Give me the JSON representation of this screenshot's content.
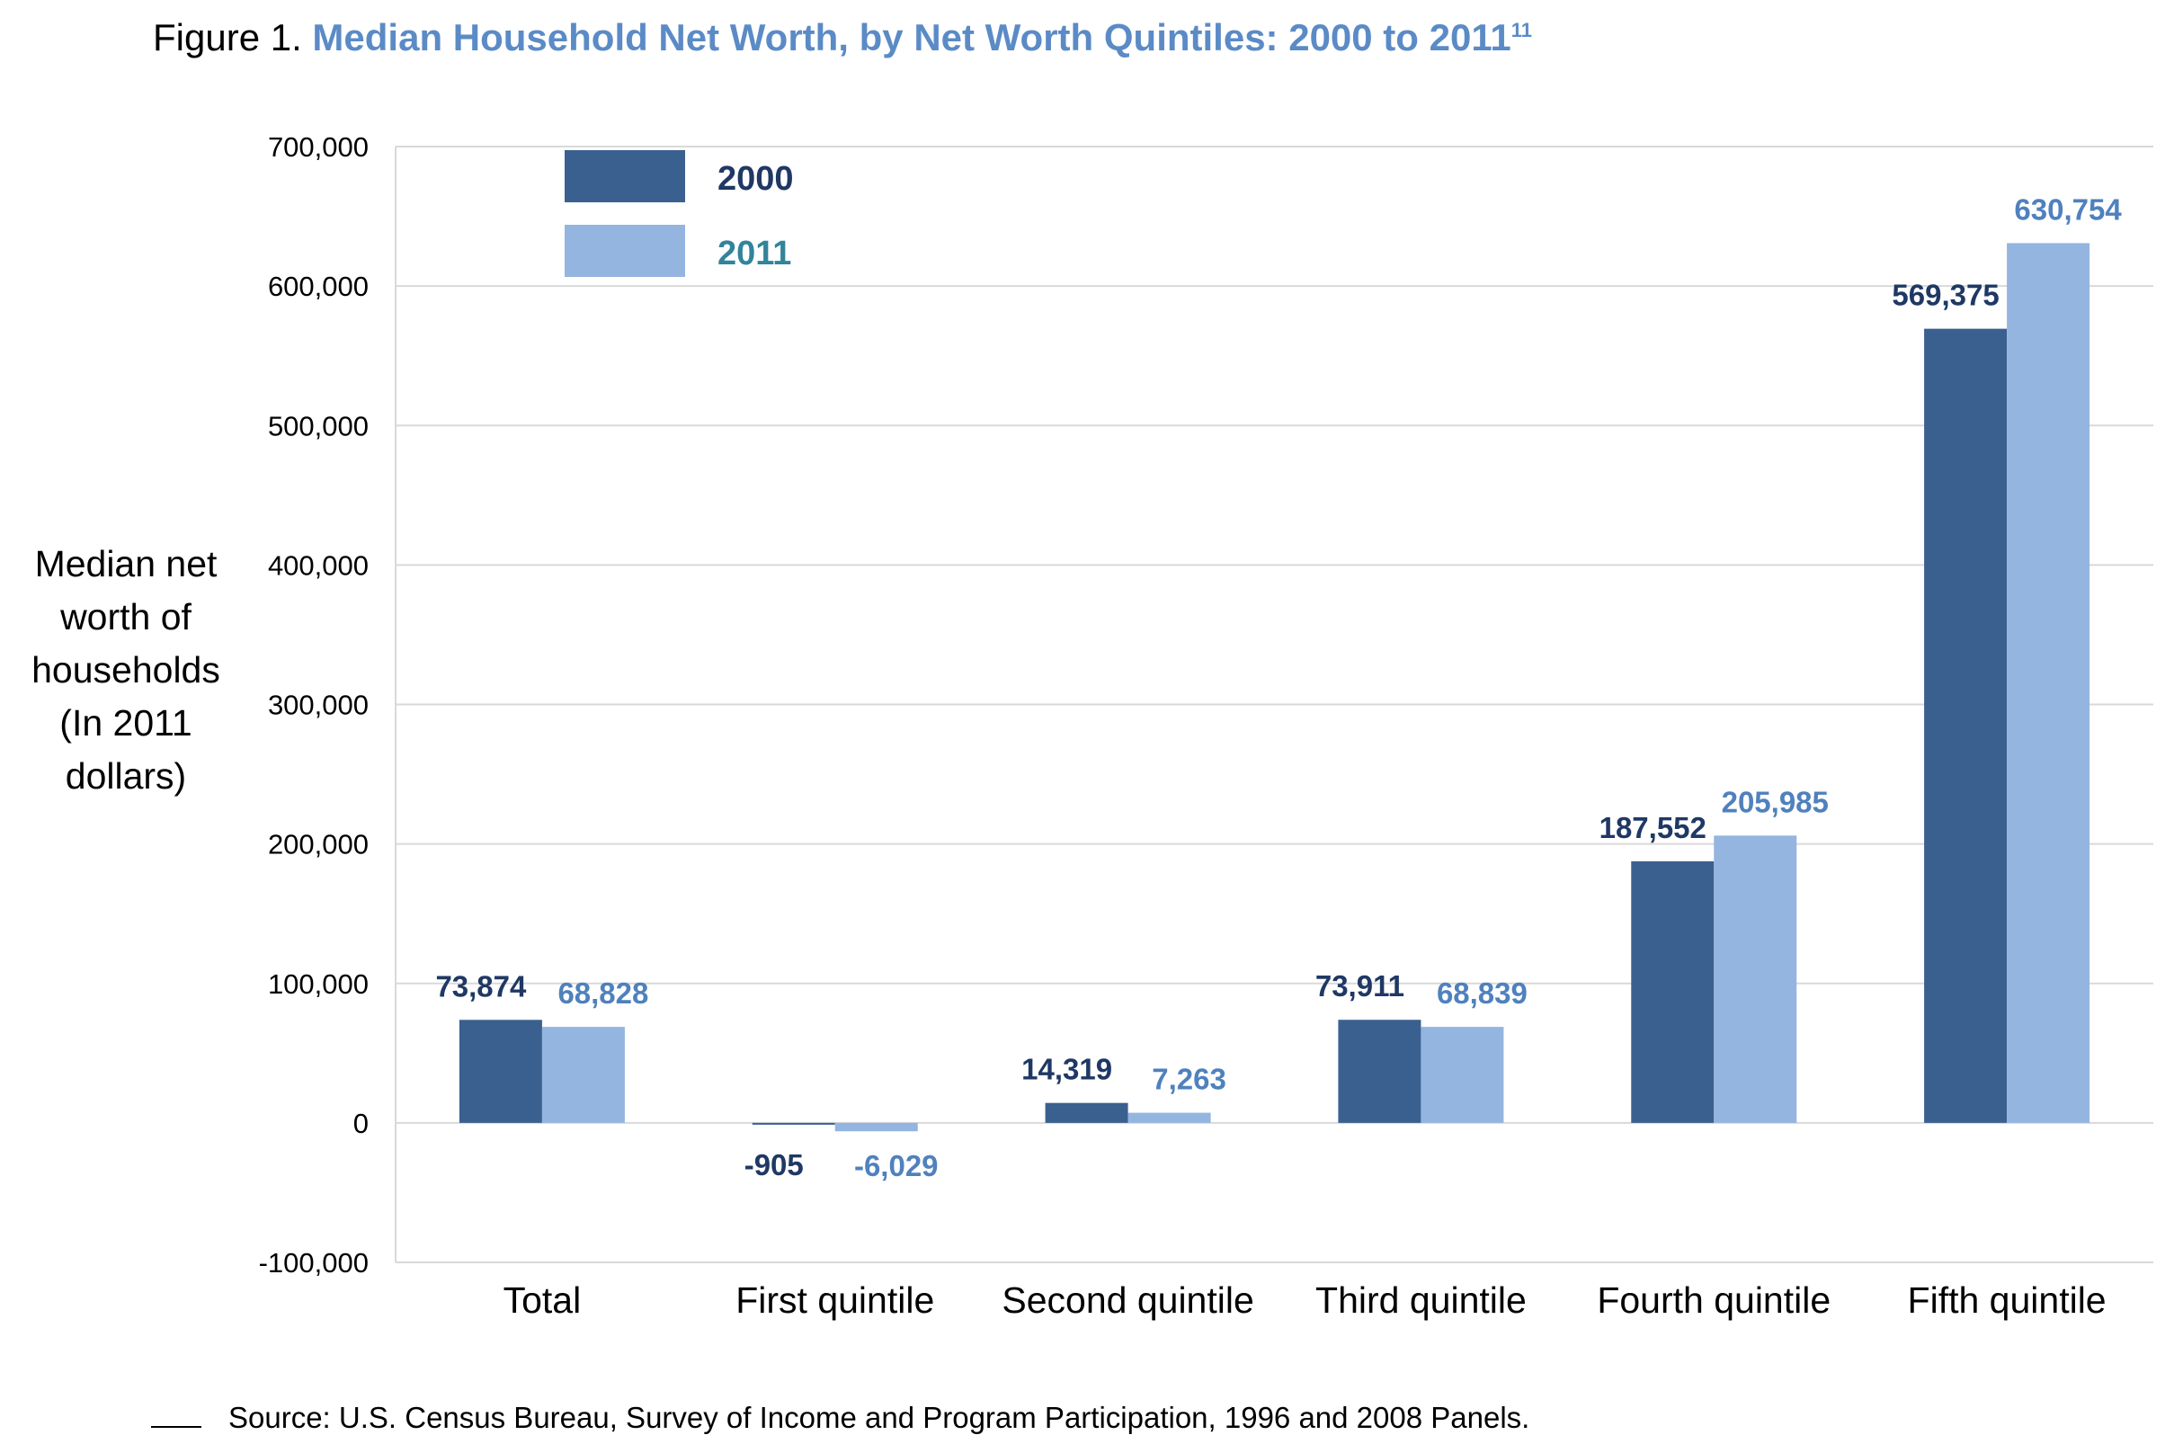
{
  "title": {
    "prefix": "Figure 1.",
    "main": "Median Household Net Worth, by Net Worth Quintiles: 2000 to 2011",
    "superscript": "11"
  },
  "source": "Source: U.S. Census Bureau, Survey of Income and Program Participation, 1996 and 2008 Panels.",
  "colors": {
    "series_2000": "#3a6090",
    "series_2011": "#94b5e0",
    "label_2000": "#1f3864",
    "label_2011": "#4f81bd",
    "legend_2011_text": "#31849b",
    "grid": "#d9d9d9",
    "title_accent": "#5b8bc6"
  },
  "chart_data": {
    "type": "bar",
    "title": "Median Household Net Worth, by Net Worth Quintiles: 2000 to 2011",
    "ylabel": "Median net worth of households (In 2011 dollars)",
    "ylabel_lines": [
      "Median net",
      "worth of",
      "households",
      "(In 2011",
      "dollars)"
    ],
    "xlabel": "",
    "ylim": [
      -100000,
      700000
    ],
    "yticks": [
      -100000,
      0,
      100000,
      200000,
      300000,
      400000,
      500000,
      600000,
      700000
    ],
    "ytick_labels": [
      "-100,000",
      "0",
      "100,000",
      "200,000",
      "300,000",
      "400,000",
      "500,000",
      "600,000",
      "700,000"
    ],
    "grid": true,
    "legend_position": "top-left",
    "categories": [
      "Total",
      "First quintile",
      "Second quintile",
      "Third quintile",
      "Fourth quintile",
      "Fifth quintile"
    ],
    "series": [
      {
        "name": "2000",
        "values": [
          73874,
          -905,
          14319,
          73911,
          187552,
          569375
        ],
        "labels": [
          "73,874",
          "-905",
          "14,319",
          "73,911",
          "187,552",
          "569,375"
        ]
      },
      {
        "name": "2011",
        "values": [
          68828,
          -6029,
          7263,
          68839,
          205985,
          630754
        ],
        "labels": [
          "68,828",
          "-6,029",
          "7,263",
          "68,839",
          "205,985",
          "630,754"
        ]
      }
    ]
  }
}
